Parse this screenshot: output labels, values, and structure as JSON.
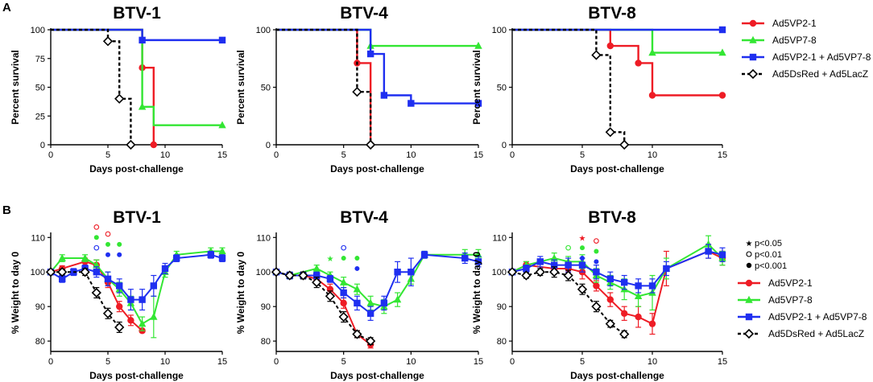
{
  "panels": {
    "A": "A",
    "B": "B"
  },
  "colors": {
    "Ad5VP2-1": "#ee1c25",
    "Ad5VP7-8": "#33e633",
    "Ad5VP2-1 + Ad5VP7-8": "#1f2ff0",
    "Ad5DsRed + Ad5LacZ": "#000000"
  },
  "significance_legend": [
    "p<0.05",
    "p<0.01",
    "p<0.001"
  ],
  "chart_data": [
    {
      "type": "line",
      "subtype": "step",
      "panel": "A",
      "title": "BTV-1",
      "xlabel": "Days post-challenge",
      "ylabel": "Percent survival",
      "xlim": [
        0,
        15
      ],
      "ylim": [
        0,
        100
      ],
      "xticks": [
        0,
        5,
        10,
        15
      ],
      "yticks": [
        0,
        25,
        50,
        75,
        100
      ],
      "series": [
        {
          "name": "Ad5VP2-1",
          "x": [
            0,
            8,
            9
          ],
          "y": [
            100,
            67,
            0
          ],
          "markers": [
            [
              8,
              67
            ],
            [
              9,
              0
            ]
          ]
        },
        {
          "name": "Ad5VP7-8",
          "x": [
            0,
            8,
            9,
            15
          ],
          "y": [
            100,
            33,
            17,
            17
          ],
          "markers": [
            [
              8,
              33
            ],
            [
              15,
              17
            ]
          ]
        },
        {
          "name": "Ad5VP2-1 + Ad5VP7-8",
          "x": [
            0,
            8,
            15
          ],
          "y": [
            100,
            91,
            91
          ],
          "markers": [
            [
              8,
              91
            ],
            [
              15,
              91
            ]
          ]
        },
        {
          "name": "Ad5DsRed + Ad5LacZ",
          "x": [
            0,
            5,
            6,
            7
          ],
          "y": [
            100,
            90,
            40,
            0
          ],
          "markers": [
            [
              5,
              90
            ],
            [
              6,
              40
            ],
            [
              7,
              0
            ]
          ]
        }
      ]
    },
    {
      "type": "line",
      "subtype": "step",
      "panel": "A",
      "title": "BTV-4",
      "xlabel": "Days post-challenge",
      "ylabel": "Percent survival",
      "xlim": [
        0,
        15
      ],
      "ylim": [
        0,
        100
      ],
      "xticks": [
        0,
        5,
        10,
        15
      ],
      "yticks": [
        0,
        50,
        100
      ],
      "series": [
        {
          "name": "Ad5VP2-1",
          "x": [
            0,
            6,
            7
          ],
          "y": [
            100,
            71,
            0
          ],
          "markers": [
            [
              6,
              71
            ],
            [
              7,
              0
            ]
          ]
        },
        {
          "name": "Ad5VP7-8",
          "x": [
            0,
            7,
            15
          ],
          "y": [
            100,
            86,
            86
          ],
          "markers": [
            [
              7,
              86
            ],
            [
              15,
              86
            ]
          ]
        },
        {
          "name": "Ad5VP2-1 + Ad5VP7-8",
          "x": [
            0,
            7,
            8,
            10,
            15
          ],
          "y": [
            100,
            79,
            43,
            36,
            36
          ],
          "markers": [
            [
              7,
              79
            ],
            [
              8,
              43
            ],
            [
              10,
              36
            ],
            [
              15,
              36
            ]
          ]
        },
        {
          "name": "Ad5DsRed + Ad5LacZ",
          "x": [
            0,
            6,
            7
          ],
          "y": [
            100,
            46,
            0
          ],
          "markers": [
            [
              6,
              46
            ],
            [
              7,
              0
            ]
          ]
        }
      ]
    },
    {
      "type": "line",
      "subtype": "step",
      "panel": "A",
      "title": "BTV-8",
      "xlabel": "Days post-challenge",
      "ylabel": "Percent survival",
      "xlim": [
        0,
        15
      ],
      "ylim": [
        0,
        100
      ],
      "xticks": [
        0,
        5,
        10,
        15
      ],
      "yticks": [
        0,
        50,
        100
      ],
      "series": [
        {
          "name": "Ad5VP2-1",
          "x": [
            0,
            7,
            9,
            10,
            15
          ],
          "y": [
            100,
            86,
            71,
            43,
            43
          ],
          "markers": [
            [
              7,
              86
            ],
            [
              9,
              71
            ],
            [
              10,
              43
            ],
            [
              15,
              43
            ]
          ]
        },
        {
          "name": "Ad5VP7-8",
          "x": [
            0,
            10,
            15
          ],
          "y": [
            100,
            80,
            80
          ],
          "markers": [
            [
              10,
              80
            ],
            [
              15,
              80
            ]
          ]
        },
        {
          "name": "Ad5VP2-1 + Ad5VP7-8",
          "x": [
            0,
            15
          ],
          "y": [
            100,
            100
          ],
          "markers": [
            [
              15,
              100
            ]
          ]
        },
        {
          "name": "Ad5DsRed + Ad5LacZ",
          "x": [
            0,
            6,
            7,
            8
          ],
          "y": [
            100,
            78,
            11,
            0
          ],
          "markers": [
            [
              6,
              78
            ],
            [
              7,
              11
            ],
            [
              8,
              0
            ]
          ]
        }
      ]
    },
    {
      "type": "line",
      "panel": "B",
      "title": "BTV-1",
      "xlabel": "Days post-challenge",
      "ylabel": "% Weight to day 0",
      "xlim": [
        0,
        15
      ],
      "ylim": [
        77,
        111
      ],
      "xticks": [
        0,
        5,
        10,
        15
      ],
      "yticks": [
        80,
        90,
        100,
        110
      ],
      "series": [
        {
          "name": "Ad5VP2-1",
          "x": [
            0,
            1,
            3,
            4,
            5,
            6,
            7,
            8
          ],
          "y": [
            100,
            101,
            103,
            102,
            97,
            90,
            86,
            83
          ],
          "err": [
            0,
            0.8,
            1,
            1.5,
            1.5,
            1.5,
            1.5,
            0.5
          ]
        },
        {
          "name": "Ad5VP7-8",
          "x": [
            0,
            1,
            3,
            4,
            5,
            6,
            7,
            8,
            9,
            10,
            11,
            14,
            15
          ],
          "y": [
            100,
            104,
            104,
            102,
            98,
            95,
            91,
            85,
            87,
            100,
            105,
            106,
            106
          ],
          "err": [
            0,
            1,
            1,
            1.5,
            2,
            2,
            2,
            2,
            6,
            1.5,
            1,
            1,
            1
          ]
        },
        {
          "name": "Ad5VP2-1 + Ad5VP7-8",
          "x": [
            0,
            1,
            2,
            3,
            4,
            5,
            6,
            7,
            8,
            9,
            10,
            11,
            14,
            15
          ],
          "y": [
            100,
            98,
            100,
            101,
            100,
            98,
            96,
            92,
            92,
            96,
            101,
            104,
            105,
            104
          ],
          "err": [
            0,
            1,
            1,
            1,
            1.5,
            2,
            2,
            3,
            3,
            3,
            1.5,
            1,
            1,
            1
          ]
        },
        {
          "name": "Ad5DsRed + Ad5LacZ",
          "x": [
            0,
            1,
            3,
            4,
            5,
            6
          ],
          "y": [
            100,
            100,
            100,
            94,
            88,
            84
          ],
          "err": [
            0,
            0.8,
            1,
            1.5,
            1.5,
            1.5
          ]
        }
      ],
      "significance": [
        {
          "x": 4,
          "y": 113,
          "color": "Ad5VP2-1",
          "sym": "open"
        },
        {
          "x": 4,
          "y": 110,
          "color": "Ad5VP7-8",
          "sym": "filled"
        },
        {
          "x": 4,
          "y": 107,
          "color": "Ad5VP2-1 + Ad5VP7-8",
          "sym": "open"
        },
        {
          "x": 5,
          "y": 111,
          "color": "Ad5VP2-1",
          "sym": "open"
        },
        {
          "x": 5,
          "y": 108,
          "color": "Ad5VP7-8",
          "sym": "filled"
        },
        {
          "x": 5,
          "y": 105,
          "color": "Ad5VP2-1 + Ad5VP7-8",
          "sym": "filled"
        },
        {
          "x": 6,
          "y": 108,
          "color": "Ad5VP7-8",
          "sym": "filled"
        },
        {
          "x": 6,
          "y": 105,
          "color": "Ad5VP2-1 + Ad5VP7-8",
          "sym": "filled"
        }
      ]
    },
    {
      "type": "line",
      "panel": "B",
      "title": "BTV-4",
      "xlabel": "Days post-challenge",
      "ylabel": "% Weight to day 0",
      "xlim": [
        0,
        15
      ],
      "ylim": [
        77,
        111
      ],
      "xticks": [
        0,
        5,
        10,
        15
      ],
      "yticks": [
        80,
        90,
        100,
        110
      ],
      "series": [
        {
          "name": "Ad5VP2-1",
          "x": [
            0,
            1,
            2,
            3,
            4,
            5,
            6,
            7
          ],
          "y": [
            100,
            99,
            99,
            98,
            95,
            91,
            82,
            79
          ],
          "err": [
            0,
            0.8,
            1,
            1.5,
            1.5,
            1.5,
            1,
            1
          ]
        },
        {
          "name": "Ad5VP7-8",
          "x": [
            0,
            1,
            3,
            4,
            5,
            6,
            7,
            8,
            9,
            10,
            11,
            14,
            15
          ],
          "y": [
            100,
            99,
            101,
            99,
            97,
            95,
            91,
            90,
            92,
            98,
            105,
            105,
            105
          ],
          "err": [
            0,
            1,
            1,
            1,
            1.5,
            1.5,
            2,
            2,
            2,
            1.5,
            1,
            1.5,
            1.5
          ]
        },
        {
          "name": "Ad5VP2-1 + Ad5VP7-8",
          "x": [
            0,
            1,
            2,
            3,
            4,
            5,
            6,
            7,
            8,
            9,
            10,
            11,
            14,
            15
          ],
          "y": [
            100,
            99,
            99,
            99,
            98,
            94,
            91,
            88,
            91,
            100,
            100,
            105,
            104,
            103
          ],
          "err": [
            0,
            1,
            1,
            1,
            1,
            1.5,
            2,
            2,
            2,
            3,
            4,
            1,
            1.5,
            1.5
          ]
        },
        {
          "name": "Ad5DsRed + Ad5LacZ",
          "x": [
            0,
            1,
            2,
            3,
            4,
            5,
            6,
            7
          ],
          "y": [
            100,
            99,
            99,
            97,
            93,
            87,
            82,
            80
          ],
          "err": [
            0,
            0.8,
            1,
            1.5,
            1.5,
            1.5,
            1,
            1
          ]
        }
      ],
      "significance": [
        {
          "x": 4,
          "y": 104,
          "color": "Ad5VP7-8",
          "sym": "star"
        },
        {
          "x": 5,
          "y": 107,
          "color": "Ad5VP2-1 + Ad5VP7-8",
          "sym": "open"
        },
        {
          "x": 5,
          "y": 104,
          "color": "Ad5VP7-8",
          "sym": "filled"
        },
        {
          "x": 6,
          "y": 104,
          "color": "Ad5VP7-8",
          "sym": "filled"
        },
        {
          "x": 6,
          "y": 101,
          "color": "Ad5VP2-1 + Ad5VP7-8",
          "sym": "filled"
        }
      ]
    },
    {
      "type": "line",
      "panel": "B",
      "title": "BTV-8",
      "xlabel": "Days post-challenge",
      "ylabel": "% Weight to day 0",
      "xlim": [
        0,
        15
      ],
      "ylim": [
        77,
        111
      ],
      "xticks": [
        0,
        5,
        10,
        15
      ],
      "yticks": [
        80,
        90,
        100,
        110
      ],
      "series": [
        {
          "name": "Ad5VP2-1",
          "x": [
            0,
            1,
            3,
            4,
            5,
            6,
            7,
            8,
            9,
            10,
            11,
            14,
            15
          ],
          "y": [
            100,
            102,
            101,
            101,
            100,
            96,
            92,
            88,
            87,
            85,
            101,
            106,
            104
          ],
          "err": [
            0,
            1,
            1,
            1,
            2,
            1.5,
            2,
            2,
            3,
            3,
            5,
            2,
            2
          ]
        },
        {
          "name": "Ad5VP7-8",
          "x": [
            0,
            1,
            3,
            4,
            5,
            6,
            7,
            8,
            9,
            10,
            11,
            14,
            15
          ],
          "y": [
            100,
            102,
            104,
            103,
            103,
            99,
            97,
            95,
            93,
            94,
            101,
            108,
            104
          ],
          "err": [
            0,
            1,
            1.5,
            1.5,
            2,
            2,
            2,
            3,
            3,
            5,
            3,
            2.5,
            2
          ]
        },
        {
          "name": "Ad5VP2-1 + Ad5VP7-8",
          "x": [
            0,
            1,
            2,
            3,
            4,
            5,
            6,
            7,
            8,
            9,
            10,
            11,
            14,
            15
          ],
          "y": [
            100,
            101,
            103,
            102,
            102,
            102,
            100,
            98,
            97,
            96,
            96,
            101,
            106,
            105
          ],
          "err": [
            0,
            1,
            1.5,
            1.5,
            2,
            2,
            2,
            2,
            2,
            2,
            2,
            2,
            2,
            2
          ]
        },
        {
          "name": "Ad5DsRed + Ad5LacZ",
          "x": [
            0,
            1,
            2,
            3,
            4,
            5,
            6,
            7,
            8
          ],
          "y": [
            100,
            99,
            100,
            100,
            99,
            95,
            90,
            85,
            82
          ],
          "err": [
            0,
            0.8,
            1,
            1.5,
            1.5,
            1.5,
            1.5,
            1,
            1
          ]
        }
      ],
      "significance": [
        {
          "x": 4,
          "y": 107,
          "color": "Ad5VP7-8",
          "sym": "open"
        },
        {
          "x": 5,
          "y": 110,
          "color": "Ad5VP2-1",
          "sym": "star"
        },
        {
          "x": 5,
          "y": 107,
          "color": "Ad5VP7-8",
          "sym": "filled"
        },
        {
          "x": 5,
          "y": 104,
          "color": "Ad5VP2-1 + Ad5VP7-8",
          "sym": "filled"
        },
        {
          "x": 6,
          "y": 109,
          "color": "Ad5VP2-1",
          "sym": "open"
        },
        {
          "x": 6,
          "y": 106,
          "color": "Ad5VP7-8",
          "sym": "filled"
        },
        {
          "x": 6,
          "y": 103,
          "color": "Ad5VP2-1 + Ad5VP7-8",
          "sym": "filled"
        }
      ]
    }
  ]
}
